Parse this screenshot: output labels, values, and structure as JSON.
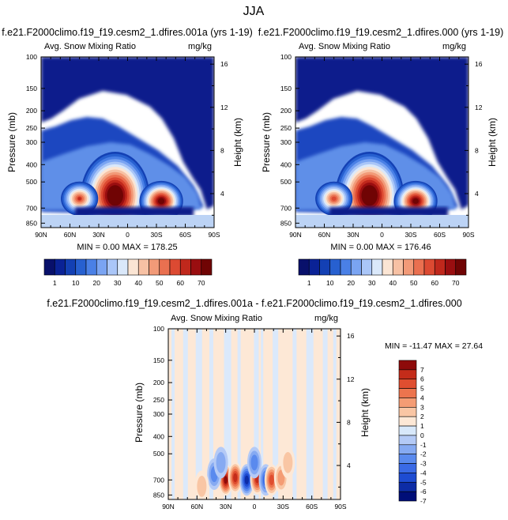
{
  "title": "JJA",
  "chart_data": [
    {
      "type": "heatmap",
      "title": "f.e21.F2000climo.f19_f19.cesm2_1.dfires.001a (yrs 1-19)",
      "subtitle_left": "Avg. Snow Mixing Ratio",
      "subtitle_right": "mg/kg",
      "ylabel": "Pressure (mb)",
      "ylabel_right": "Height (km)",
      "x_ticks": [
        "90N",
        "60N",
        "30N",
        "0",
        "30S",
        "60S",
        "90S"
      ],
      "y_ticks": [
        "100",
        "150",
        "200",
        "250",
        "300",
        "400",
        "500",
        "700",
        "850"
      ],
      "y_ticks_right": [
        "16",
        "12",
        "8",
        "4"
      ],
      "stats": "MIN =  0.00  MAX = 178.25",
      "colorbar_labels": [
        "1",
        "10",
        "20",
        "30",
        "40",
        "50",
        "60",
        "70"
      ],
      "peaks": [
        {
          "lat": 13,
          "p": 560,
          "v": 178.25
        },
        {
          "lat": -35,
          "p": 640,
          "v": 72
        },
        {
          "lat": 50,
          "p": 620,
          "v": 55
        }
      ]
    },
    {
      "type": "heatmap",
      "title": "f.e21.F2000climo.f19_f19.cesm2_1.dfires.000 (yrs 1-19)",
      "subtitle_left": "Avg. Snow Mixing Ratio",
      "subtitle_right": "mg/kg",
      "ylabel": "Pressure (mb)",
      "ylabel_right": "Height (km)",
      "x_ticks": [
        "90N",
        "60N",
        "30N",
        "0",
        "30S",
        "60S",
        "90S"
      ],
      "y_ticks": [
        "100",
        "150",
        "200",
        "250",
        "300",
        "400",
        "500",
        "700",
        "850"
      ],
      "y_ticks_right": [
        "16",
        "12",
        "8",
        "4"
      ],
      "stats": "MIN =  0.00  MAX = 176.46",
      "colorbar_labels": [
        "1",
        "10",
        "20",
        "30",
        "40",
        "50",
        "60",
        "70"
      ],
      "peaks": [
        {
          "lat": 13,
          "p": 560,
          "v": 176.46
        },
        {
          "lat": -35,
          "p": 640,
          "v": 71
        },
        {
          "lat": 50,
          "p": 620,
          "v": 54
        }
      ]
    },
    {
      "type": "heatmap",
      "title": "f.e21.F2000climo.f19_f19.cesm2_1.dfires.001a - f.e21.F2000climo.f19_f19.cesm2_1.dfires.000",
      "subtitle_left": "Avg. Snow Mixing Ratio",
      "subtitle_right": "mg/kg",
      "ylabel": "Pressure (mb)",
      "ylabel_right": "Height (km)",
      "x_ticks": [
        "90N",
        "60N",
        "30N",
        "0",
        "30S",
        "60S",
        "90S"
      ],
      "y_ticks": [
        "100",
        "150",
        "200",
        "250",
        "300",
        "400",
        "500",
        "700",
        "850"
      ],
      "y_ticks_right": [
        "16",
        "12",
        "8",
        "4"
      ],
      "stats": "MIN = -11.47  MAX =  27.64",
      "colorbar_labels": [
        "7",
        "6",
        "5",
        "4",
        "3",
        "2",
        "1",
        "0",
        "-1",
        "-2",
        "-3",
        "-4",
        "-5",
        "-6",
        "-7"
      ]
    }
  ],
  "colors": {
    "seq": [
      "#08106b",
      "#0a2296",
      "#1340b4",
      "#2760d0",
      "#4a80e6",
      "#7aa4f2",
      "#aac6f8",
      "#dae8fa",
      "#fbe5d4",
      "#f7c1a4",
      "#f29a78",
      "#ea7050",
      "#dc4a32",
      "#c0281c",
      "#9a0e10",
      "#700404"
    ],
    "div": [
      "#000e78",
      "#0d2ca6",
      "#1e4cd2",
      "#3a6ae6",
      "#5a8aee",
      "#86aaf2",
      "#b4caf6",
      "#d8e8fa",
      "#fde8d6",
      "#f9c6a4",
      "#f49c74",
      "#ec744e",
      "#df4e30",
      "#c42c1a",
      "#8e0a0a"
    ]
  }
}
